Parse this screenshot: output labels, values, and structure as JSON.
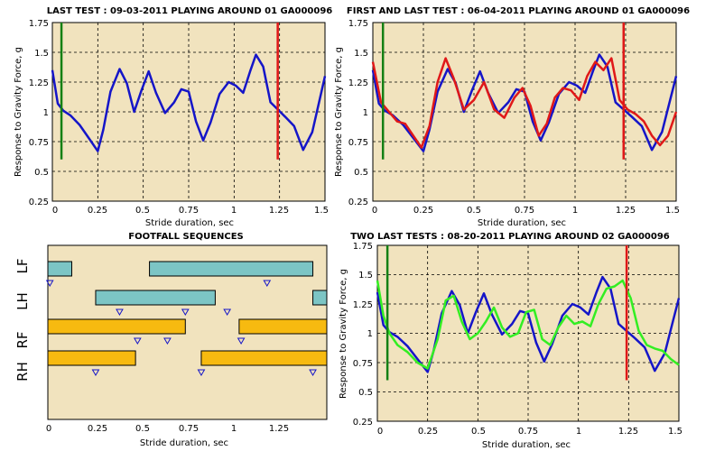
{
  "colors": {
    "plot_bg": "#F1E3BE",
    "grid": "#000000",
    "blue": "#1515C8",
    "red": "#E01818",
    "green_line": "#148014",
    "bright_green": "#33EE22",
    "teal": "#7CC5C5",
    "gold": "#F7BA10",
    "triangle": "#1515C8"
  },
  "chart_data": [
    {
      "type": "line",
      "title": "LAST TEST : 09-03-2011 PLAYING AROUND 01 GA000096",
      "xlabel": "Stride duration, sec",
      "ylabel": "Response to Gravity Force, g",
      "xlim": [
        0,
        1.5
      ],
      "ylim": [
        0.25,
        1.75
      ],
      "xticks": [
        0,
        0.25,
        0.5,
        0.75,
        1,
        1.25,
        1.5
      ],
      "xtick_labels": [
        "0",
        "0.25",
        "0.5",
        "0.75",
        "1",
        "1.25",
        "1.5"
      ],
      "yticks": [
        0.25,
        0.5,
        0.75,
        1,
        1.25,
        1.5,
        1.75
      ],
      "ytick_labels": [
        "0.25",
        "0.5",
        "0.75",
        "1",
        "1.25",
        "1.5",
        "1.75"
      ],
      "grid": true,
      "series": [
        {
          "color": "blue",
          "x": [
            0,
            0.03,
            0.06,
            0.1,
            0.15,
            0.2,
            0.25,
            0.28,
            0.32,
            0.37,
            0.41,
            0.45,
            0.49,
            0.53,
            0.57,
            0.62,
            0.67,
            0.71,
            0.75,
            0.79,
            0.83,
            0.87,
            0.92,
            0.97,
            1.01,
            1.05,
            1.09,
            1.12,
            1.16,
            1.2,
            1.24,
            1.28,
            1.33,
            1.38,
            1.43,
            1.47,
            1.5
          ],
          "y": [
            1.35,
            1.07,
            1.01,
            0.97,
            0.89,
            0.78,
            0.67,
            0.85,
            1.17,
            1.36,
            1.24,
            1.0,
            1.18,
            1.34,
            1.16,
            0.99,
            1.08,
            1.19,
            1.17,
            0.92,
            0.76,
            0.91,
            1.15,
            1.25,
            1.22,
            1.16,
            1.35,
            1.48,
            1.38,
            1.08,
            1.02,
            0.96,
            0.88,
            0.68,
            0.83,
            1.1,
            1.3
          ]
        }
      ],
      "vlines": [
        {
          "x": 0.05,
          "color": "green_line",
          "y0": 0.6,
          "y1": 1.75
        },
        {
          "x": 1.24,
          "color": "red",
          "y0": 0.6,
          "y1": 1.75
        }
      ]
    },
    {
      "type": "line",
      "title": "FIRST AND LAST TEST : 06-04-2011 PLAYING AROUND 01 GA000096",
      "xlabel": "Stride duration, sec",
      "ylabel": "Response to Gravity Force, g",
      "xlim": [
        0,
        1.5
      ],
      "ylim": [
        0.25,
        1.75
      ],
      "xticks": [
        0,
        0.25,
        0.5,
        0.75,
        1,
        1.25,
        1.5
      ],
      "xtick_labels": [
        "0",
        "0.25",
        "0.5",
        "0.75",
        "1",
        "1.25",
        "1.5"
      ],
      "yticks": [
        0.25,
        0.5,
        0.75,
        1,
        1.25,
        1.5,
        1.75
      ],
      "ytick_labels": [
        "0.25",
        "0.5",
        "0.75",
        "1",
        "1.25",
        "1.5",
        "1.75"
      ],
      "grid": true,
      "series": [
        {
          "color": "blue",
          "x": [
            0,
            0.03,
            0.06,
            0.1,
            0.15,
            0.2,
            0.25,
            0.28,
            0.32,
            0.37,
            0.41,
            0.45,
            0.49,
            0.53,
            0.57,
            0.62,
            0.67,
            0.71,
            0.75,
            0.79,
            0.83,
            0.87,
            0.92,
            0.97,
            1.01,
            1.05,
            1.09,
            1.12,
            1.16,
            1.2,
            1.24,
            1.28,
            1.33,
            1.38,
            1.43,
            1.47,
            1.5
          ],
          "y": [
            1.35,
            1.07,
            1.01,
            0.97,
            0.89,
            0.78,
            0.67,
            0.85,
            1.17,
            1.36,
            1.24,
            1.0,
            1.18,
            1.34,
            1.16,
            0.99,
            1.08,
            1.19,
            1.17,
            0.92,
            0.76,
            0.91,
            1.15,
            1.25,
            1.22,
            1.16,
            1.35,
            1.48,
            1.38,
            1.08,
            1.02,
            0.96,
            0.88,
            0.68,
            0.83,
            1.1,
            1.3
          ]
        },
        {
          "color": "red",
          "x": [
            0,
            0.04,
            0.08,
            0.12,
            0.16,
            0.2,
            0.24,
            0.28,
            0.32,
            0.36,
            0.4,
            0.45,
            0.5,
            0.55,
            0.6,
            0.65,
            0.7,
            0.74,
            0.78,
            0.82,
            0.86,
            0.9,
            0.94,
            0.98,
            1.02,
            1.06,
            1.1,
            1.14,
            1.18,
            1.22,
            1.26,
            1.3,
            1.34,
            1.38,
            1.42,
            1.46,
            1.5
          ],
          "y": [
            1.42,
            1.08,
            1.0,
            0.92,
            0.9,
            0.8,
            0.7,
            0.88,
            1.25,
            1.45,
            1.28,
            1.02,
            1.1,
            1.25,
            1.02,
            0.95,
            1.12,
            1.2,
            1.05,
            0.8,
            0.9,
            1.12,
            1.2,
            1.18,
            1.1,
            1.3,
            1.42,
            1.35,
            1.45,
            1.1,
            1.02,
            0.98,
            0.92,
            0.8,
            0.72,
            0.8,
            1.0
          ]
        }
      ],
      "vlines": [
        {
          "x": 0.05,
          "color": "green_line",
          "y0": 0.6,
          "y1": 1.75
        },
        {
          "x": 1.24,
          "color": "red",
          "y0": 0.6,
          "y1": 1.75
        }
      ]
    },
    {
      "type": "gantt",
      "title": "FOOTFALL SEQUENCES",
      "xlabel": "Stride duration, sec",
      "xlim": [
        0,
        1.4
      ],
      "xticks": [
        0,
        0.25,
        0.5,
        0.75,
        1,
        1.25
      ],
      "xtick_labels": [
        "0",
        "0.25",
        "0.5",
        "0.75",
        "1",
        "1.25"
      ],
      "rows": [
        {
          "label": "LF",
          "color": "teal",
          "bars": [
            [
              0,
              0.12
            ],
            [
              0.51,
              1.33
            ]
          ],
          "triangles": [
            0.01,
            1.1
          ]
        },
        {
          "label": "LH",
          "color": "teal",
          "bars": [
            [
              0.24,
              0.84
            ],
            [
              1.33,
              1.4
            ]
          ],
          "triangles": [
            0.36,
            0.9,
            0.69
          ]
        },
        {
          "label": "RF",
          "color": "gold",
          "bars": [
            [
              0,
              0.69
            ],
            [
              0.96,
              1.4
            ]
          ],
          "triangles": [
            0.45,
            0.6,
            0.97
          ]
        },
        {
          "label": "RH",
          "color": "gold",
          "bars": [
            [
              0,
              0.44
            ],
            [
              0.77,
              1.4
            ]
          ],
          "triangles": [
            0.24,
            0.77,
            1.33
          ]
        }
      ],
      "grid": false
    },
    {
      "type": "line",
      "title": "TWO LAST TESTS : 08-20-2011 PLAYING AROUND 02 GA000096",
      "xlabel": "Stride duration, sec",
      "ylabel": "Response to Gravity Force, g",
      "xlim": [
        0,
        1.5
      ],
      "ylim": [
        0.25,
        1.75
      ],
      "xticks": [
        0,
        0.25,
        0.5,
        0.75,
        1,
        1.25,
        1.5
      ],
      "xtick_labels": [
        "0",
        "0.25",
        "0.5",
        "0.75",
        "1",
        "1.25",
        "1.5"
      ],
      "yticks": [
        0.25,
        0.5,
        0.75,
        1,
        1.25,
        1.5,
        1.75
      ],
      "ytick_labels": [
        "0.25",
        "0.5",
        "0.75",
        "1",
        "1.25",
        "1.5",
        "1.75"
      ],
      "grid": true,
      "series": [
        {
          "color": "blue",
          "x": [
            0,
            0.03,
            0.06,
            0.1,
            0.15,
            0.2,
            0.25,
            0.28,
            0.32,
            0.37,
            0.41,
            0.45,
            0.49,
            0.53,
            0.57,
            0.62,
            0.67,
            0.71,
            0.75,
            0.79,
            0.83,
            0.87,
            0.92,
            0.97,
            1.01,
            1.05,
            1.09,
            1.12,
            1.16,
            1.2,
            1.24,
            1.28,
            1.33,
            1.38,
            1.43,
            1.47,
            1.5
          ],
          "y": [
            1.35,
            1.07,
            1.01,
            0.97,
            0.89,
            0.78,
            0.67,
            0.85,
            1.17,
            1.36,
            1.24,
            1.0,
            1.18,
            1.34,
            1.16,
            0.99,
            1.08,
            1.19,
            1.17,
            0.92,
            0.76,
            0.91,
            1.15,
            1.25,
            1.22,
            1.16,
            1.35,
            1.48,
            1.38,
            1.08,
            1.02,
            0.96,
            0.88,
            0.68,
            0.83,
            1.1,
            1.3
          ]
        },
        {
          "color": "bright_green",
          "x": [
            0,
            0.03,
            0.06,
            0.1,
            0.15,
            0.2,
            0.25,
            0.3,
            0.34,
            0.38,
            0.42,
            0.46,
            0.5,
            0.54,
            0.58,
            0.62,
            0.66,
            0.7,
            0.74,
            0.78,
            0.82,
            0.86,
            0.9,
            0.94,
            0.98,
            1.02,
            1.06,
            1.1,
            1.14,
            1.18,
            1.22,
            1.26,
            1.3,
            1.34,
            1.38,
            1.42,
            1.46,
            1.5
          ],
          "y": [
            1.45,
            1.15,
            1.0,
            0.9,
            0.84,
            0.75,
            0.7,
            0.95,
            1.28,
            1.32,
            1.1,
            0.95,
            1.0,
            1.1,
            1.22,
            1.05,
            0.97,
            1.0,
            1.18,
            1.2,
            0.95,
            0.9,
            1.05,
            1.15,
            1.08,
            1.1,
            1.06,
            1.25,
            1.38,
            1.4,
            1.45,
            1.3,
            1.02,
            0.9,
            0.87,
            0.85,
            0.78,
            0.73
          ]
        }
      ],
      "vlines": [
        {
          "x": 0.05,
          "color": "green_line",
          "y0": 0.6,
          "y1": 1.75
        },
        {
          "x": 1.24,
          "color": "red",
          "y0": 0.6,
          "y1": 1.75
        }
      ]
    }
  ]
}
